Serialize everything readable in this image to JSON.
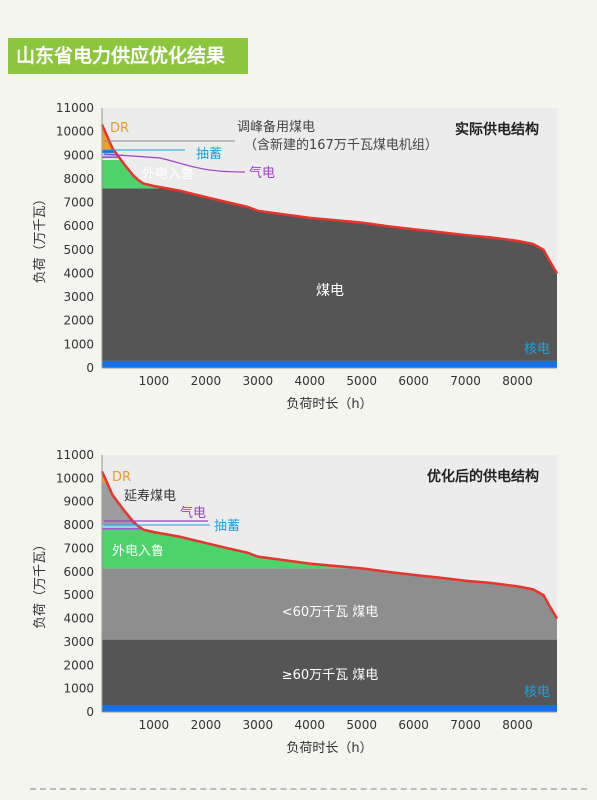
{
  "page_title": "山东省电力供应优化结果",
  "colors": {
    "banner": "#8cc63f",
    "background": "#f3f5ee",
    "plot_background": "#ececec",
    "coal": "#555555",
    "coal_small": "#8e8e8e",
    "extension_coal": "#9d9d9d",
    "external_power": "#4ed36c",
    "pumped_storage": "#8fd6f0",
    "gas": "#a455c9",
    "nuclear": "#1570e6",
    "dr": "#f0a020",
    "load_curve": "#e8342a",
    "label_dr": "#e89a2a",
    "label_storage": "#1aa3df",
    "label_gas": "#9b3fc7",
    "label_external": "#ffffff",
    "label_dark": "#222222"
  },
  "chart_data": [
    {
      "type": "area",
      "title": "实际供电结构",
      "xlabel": "负荷时长（h）",
      "ylabel": "负荷（万千瓦）",
      "xlim": [
        0,
        8760
      ],
      "ylim": [
        0,
        11000
      ],
      "xticks": [
        1000,
        2000,
        3000,
        4000,
        5000,
        6000,
        7000,
        8000
      ],
      "yticks": [
        0,
        1000,
        2000,
        3000,
        4000,
        5000,
        6000,
        7000,
        8000,
        9000,
        10000,
        11000
      ],
      "load_curve": {
        "x": [
          0,
          100,
          200,
          400,
          600,
          700,
          800,
          1000,
          1500,
          2000,
          2500,
          2800,
          3000,
          3500,
          4000,
          4500,
          5000,
          5500,
          6000,
          6500,
          7000,
          7500,
          8000,
          8300,
          8500,
          8600,
          8760
        ],
        "y": [
          10300,
          9800,
          9300,
          8700,
          8150,
          7950,
          7800,
          7700,
          7500,
          7230,
          6970,
          6820,
          6650,
          6500,
          6350,
          6250,
          6150,
          6000,
          5870,
          5750,
          5620,
          5520,
          5380,
          5250,
          5000,
          4600,
          4000
        ]
      },
      "series": [
        {
          "name": "核电",
          "type": "band",
          "y0": 0,
          "y1": 300,
          "color": "#1570e6"
        },
        {
          "name": "煤电",
          "type": "fill-under-load",
          "cap": 7600,
          "color": "#555555"
        },
        {
          "name": "外电入鲁",
          "type": "fill-band",
          "lower": 7600,
          "upper": 8800,
          "color": "#4ed36c"
        },
        {
          "name": "气电",
          "type": "band",
          "y0": 8880,
          "y1": 8960,
          "color": "#a455c9"
        },
        {
          "name": "抽蓄",
          "type": "band",
          "y0": 8960,
          "y1": 9100,
          "color": "#8fd6f0"
        },
        {
          "name": "调峰备用煤电",
          "type": "band",
          "y0": 9100,
          "y1": 9220,
          "color": "#1570e6"
        },
        {
          "name": "DR",
          "type": "fill-top",
          "lower": 9220,
          "color": "#f0a020"
        }
      ],
      "annotations": {
        "dr": "DR",
        "peak_coal_1": "调峰备用煤电",
        "peak_coal_2": "（含新建的167万千瓦煤电机组）",
        "storage": "抽蓄",
        "gas": "气电",
        "external": "外电入鲁",
        "coal": "煤电",
        "nuclear": "核电"
      }
    },
    {
      "type": "area",
      "title": "优化后的供电结构",
      "xlabel": "负荷时长（h）",
      "ylabel": "负荷（万千瓦）",
      "xlim": [
        0,
        8760
      ],
      "ylim": [
        0,
        11000
      ],
      "xticks": [
        1000,
        2000,
        3000,
        4000,
        5000,
        6000,
        7000,
        8000
      ],
      "yticks": [
        0,
        1000,
        2000,
        3000,
        4000,
        5000,
        6000,
        7000,
        8000,
        9000,
        10000,
        11000
      ],
      "load_curve": {
        "x": [
          0,
          100,
          200,
          400,
          600,
          700,
          800,
          1000,
          1500,
          2000,
          2500,
          2800,
          3000,
          3500,
          4000,
          4500,
          5000,
          5500,
          6000,
          6500,
          7000,
          7500,
          8000,
          8300,
          8500,
          8600,
          8760
        ],
        "y": [
          10300,
          9800,
          9300,
          8700,
          8150,
          7950,
          7800,
          7700,
          7500,
          7230,
          6970,
          6820,
          6650,
          6500,
          6350,
          6250,
          6150,
          6000,
          5870,
          5750,
          5620,
          5520,
          5380,
          5250,
          5000,
          4600,
          4000
        ]
      },
      "series": [
        {
          "name": "核电",
          "type": "band",
          "y0": 0,
          "y1": 300,
          "color": "#1570e6"
        },
        {
          "name": "≥60万千瓦 煤电",
          "type": "fill-under-load",
          "cap": 3100,
          "color": "#555555"
        },
        {
          "name": "<60万千瓦 煤电",
          "type": "fill-band",
          "lower": 3100,
          "upper": 6150,
          "color": "#8e8e8e"
        },
        {
          "name": "外电入鲁",
          "type": "fill-band",
          "lower": 6150,
          "upper": 7800,
          "color": "#4ed36c"
        },
        {
          "name": "气电",
          "type": "band",
          "y0": 7800,
          "y1": 7880,
          "color": "#a455c9"
        },
        {
          "name": "抽蓄",
          "type": "band",
          "y0": 7880,
          "y1": 8000,
          "color": "#8fd6f0"
        },
        {
          "name": "延寿煤电",
          "type": "fill-band",
          "lower": 8000,
          "upper": 9800,
          "color": "#9d9d9d"
        },
        {
          "name": "DR",
          "type": "fill-top",
          "lower": 9800,
          "color": "#f0a020"
        }
      ],
      "annotations": {
        "dr": "DR",
        "extension": "延寿煤电",
        "gas": "气电",
        "storage": "抽蓄",
        "external": "外电入鲁",
        "coal_small": "<60万千瓦  煤电",
        "coal_large": "≥60万千瓦  煤电",
        "nuclear": "核电"
      }
    }
  ]
}
